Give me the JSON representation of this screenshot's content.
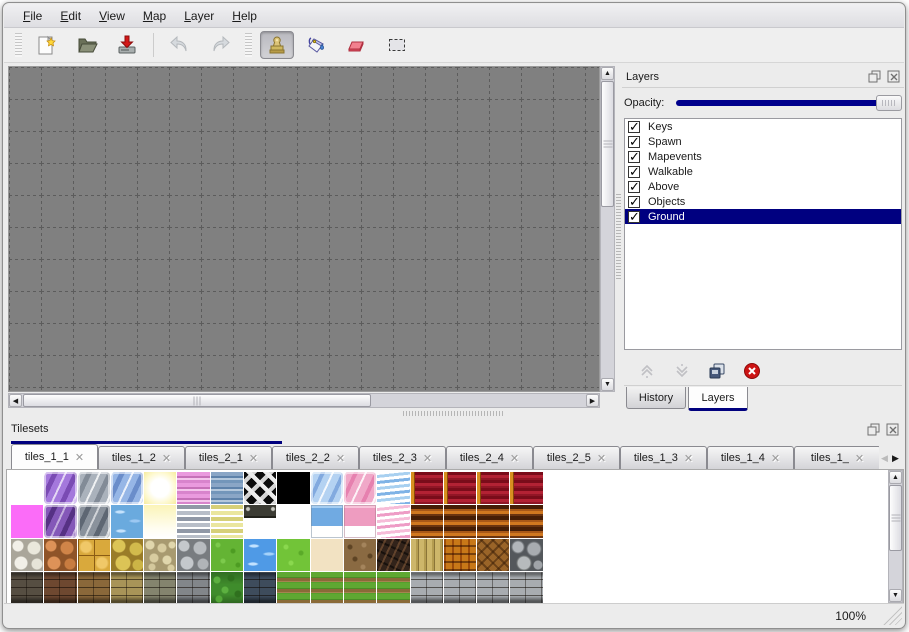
{
  "menu_bar": {
    "items": [
      {
        "label": "File"
      },
      {
        "label": "Edit"
      },
      {
        "label": "View"
      },
      {
        "label": "Map"
      },
      {
        "label": "Layer"
      },
      {
        "label": "Help"
      }
    ]
  },
  "toolbar": {
    "buttons": [
      {
        "id": "new",
        "icon": "new-file-icon",
        "disabled": false,
        "selected": false
      },
      {
        "id": "open",
        "icon": "open-folder-icon",
        "disabled": false,
        "selected": false
      },
      {
        "id": "save",
        "icon": "save-icon",
        "disabled": false,
        "selected": false
      },
      {
        "id": "undo",
        "icon": "undo-icon",
        "disabled": true,
        "selected": false
      },
      {
        "id": "redo",
        "icon": "redo-icon",
        "disabled": true,
        "selected": false
      },
      {
        "id": "stamp",
        "icon": "stamp-icon",
        "disabled": false,
        "selected": true
      },
      {
        "id": "fill",
        "icon": "bucket-icon",
        "disabled": false,
        "selected": false
      },
      {
        "id": "eraser",
        "icon": "eraser-icon",
        "disabled": false,
        "selected": false
      },
      {
        "id": "select",
        "icon": "selection-icon",
        "disabled": false,
        "selected": false
      }
    ]
  },
  "layers_panel": {
    "title": "Layers",
    "opacity_label": "Opacity:",
    "opacity_value": 100,
    "window_buttons": [
      "float-icon",
      "close-icon"
    ],
    "layers": [
      {
        "name": "Keys",
        "checked": true,
        "selected": false
      },
      {
        "name": "Spawn",
        "checked": true,
        "selected": false
      },
      {
        "name": "Mapevents",
        "checked": true,
        "selected": false
      },
      {
        "name": "Walkable",
        "checked": true,
        "selected": false
      },
      {
        "name": "Above",
        "checked": true,
        "selected": false
      },
      {
        "name": "Objects",
        "checked": true,
        "selected": false
      },
      {
        "name": "Ground",
        "checked": true,
        "selected": true
      }
    ],
    "layer_buttons": [
      "move-layer-up-icon",
      "move-layer-down-icon",
      "duplicate-layer-icon",
      "delete-layer-icon"
    ],
    "bottom_tabs": [
      {
        "label": "History",
        "active": false
      },
      {
        "label": "Layers",
        "active": true
      }
    ]
  },
  "tilesets_panel": {
    "title": "Tilesets",
    "window_buttons": [
      "float-icon",
      "close-icon"
    ],
    "tabs": [
      {
        "label": "tiles_1_1",
        "active": true
      },
      {
        "label": "tiles_1_2",
        "active": false
      },
      {
        "label": "tiles_2_1",
        "active": false
      },
      {
        "label": "tiles_2_2",
        "active": false
      },
      {
        "label": "tiles_2_3",
        "active": false
      },
      {
        "label": "tiles_2_4",
        "active": false
      },
      {
        "label": "tiles_2_5",
        "active": false
      },
      {
        "label": "tiles_1_3",
        "active": false
      },
      {
        "label": "tiles_1_4",
        "active": false
      },
      {
        "label": "tiles_1_",
        "active": false
      }
    ],
    "tile_rows": [
      [
        "empty",
        "glass-purple",
        "glass-gray",
        "glass-blue",
        "glow-yellow",
        "stripes-pink",
        "stripes-blue",
        "lattice",
        "black",
        "glass-blue2",
        "glass-pink",
        "wave-blue",
        "curtain-red",
        "curtain-red",
        "curtain-red",
        "curtain-red"
      ],
      [
        "magenta",
        "glass-purple-dk",
        "glass-gray-dk",
        "water-tex",
        "glow-pale",
        "stripes-gray",
        "stripes-yellow",
        "sign",
        "empty",
        "blue-solid",
        "pink-solid",
        "wave-pink",
        "curtain-brown",
        "curtain-brown",
        "curtain-brown",
        "curtain-brown"
      ],
      [
        "path-white",
        "cobble-orange",
        "tile-gold",
        "flag-yellow",
        "pebble-beige",
        "stone-gray",
        "grass",
        "water",
        "grass-bright",
        "sand",
        "dirt",
        "shingles",
        "planks",
        "basket",
        "herringbone",
        "logs"
      ],
      [
        "wall-dark",
        "wall-brown",
        "wall-tan",
        "wall-yellow",
        "wall-stone",
        "wall-gray",
        "hedge",
        "wall-blue",
        "grasspath",
        "grasspath",
        "grasspath",
        "grasspath",
        "brick-light",
        "brick-light",
        "brick-light",
        "brick-light"
      ]
    ]
  },
  "status_bar": {
    "zoom_level": "100%"
  },
  "colors": {
    "accent_navy": "#000080",
    "canvas_gray": "#808080",
    "selection_bg": "#000080",
    "window_bg": "#ececec"
  }
}
